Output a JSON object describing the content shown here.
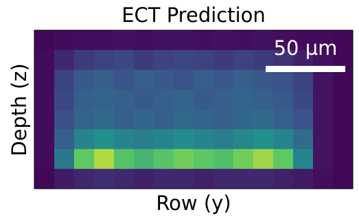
{
  "chart_data": {
    "type": "image",
    "title": "ECT Prediction",
    "x_label": "Row (y)",
    "y_label": "Depth (z)",
    "scalebar_label": "50 µm",
    "colormap": "viridis",
    "zlim": [
      0,
      1
    ],
    "z": [
      [
        0.02,
        0.03,
        0.04,
        0.04,
        0.05,
        0.04,
        0.05,
        0.05,
        0.04,
        0.05,
        0.04,
        0.05,
        0.04,
        0.03,
        0.03,
        0.02
      ],
      [
        0.03,
        0.12,
        0.18,
        0.2,
        0.22,
        0.18,
        0.2,
        0.22,
        0.2,
        0.18,
        0.2,
        0.18,
        0.15,
        0.1,
        0.05,
        0.02
      ],
      [
        0.03,
        0.2,
        0.28,
        0.3,
        0.26,
        0.3,
        0.28,
        0.25,
        0.3,
        0.27,
        0.3,
        0.28,
        0.25,
        0.2,
        0.06,
        0.02
      ],
      [
        0.03,
        0.22,
        0.3,
        0.32,
        0.3,
        0.28,
        0.3,
        0.32,
        0.28,
        0.3,
        0.32,
        0.3,
        0.28,
        0.22,
        0.06,
        0.02
      ],
      [
        0.03,
        0.24,
        0.32,
        0.35,
        0.3,
        0.33,
        0.3,
        0.34,
        0.32,
        0.3,
        0.33,
        0.35,
        0.3,
        0.25,
        0.06,
        0.02
      ],
      [
        0.03,
        0.3,
        0.45,
        0.5,
        0.45,
        0.42,
        0.45,
        0.48,
        0.45,
        0.42,
        0.46,
        0.5,
        0.45,
        0.35,
        0.06,
        0.02
      ],
      [
        0.03,
        0.4,
        0.75,
        0.88,
        0.72,
        0.65,
        0.72,
        0.78,
        0.74,
        0.7,
        0.78,
        0.85,
        0.75,
        0.45,
        0.06,
        0.02
      ],
      [
        0.02,
        0.08,
        0.12,
        0.14,
        0.12,
        0.1,
        0.12,
        0.12,
        0.1,
        0.12,
        0.12,
        0.12,
        0.1,
        0.08,
        0.04,
        0.02
      ]
    ]
  }
}
